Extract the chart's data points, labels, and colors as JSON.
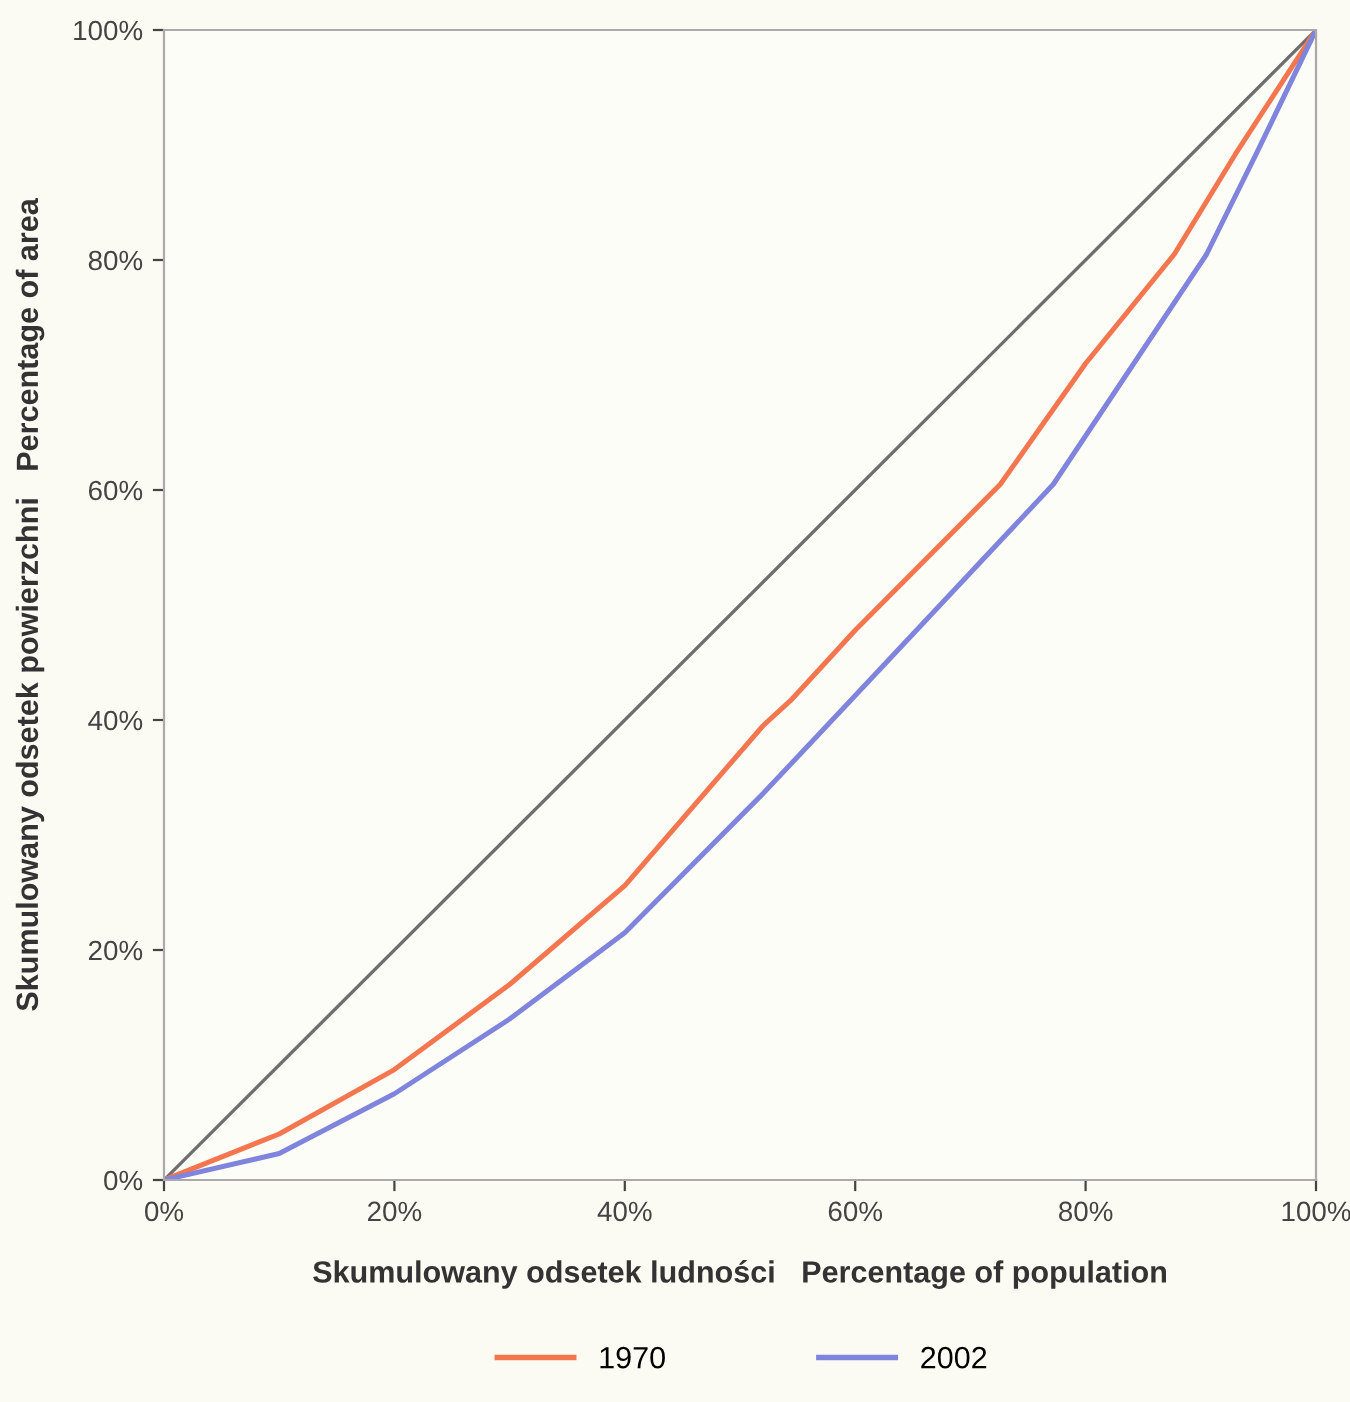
{
  "chart_data": {
    "type": "line",
    "xlabel": "Skumulowany odsetek ludności   Percentage of population",
    "ylabel": "Skumulowany odsetek powierzchni   Percentage of area",
    "series": [
      {
        "color": "#6e6e6e",
        "x": [
          0,
          100
        ],
        "values": [
          0,
          100
        ]
      },
      {
        "name": "1970",
        "color": "#f4764e",
        "x": [
          0,
          10,
          20,
          30,
          40,
          52,
          54.4,
          60,
          72.6,
          80,
          87.7,
          93,
          100
        ],
        "values": [
          0,
          4,
          9.6,
          17,
          25.6,
          39.5,
          41.7,
          47.8,
          60.5,
          71,
          80.5,
          89.2,
          100
        ]
      },
      {
        "name": "2002",
        "color": "#7f84dc",
        "x": [
          0,
          10,
          20,
          30,
          40,
          52,
          59.6,
          70,
          77.2,
          90.5,
          94.8,
          100
        ],
        "values": [
          0,
          2.3,
          7.5,
          14,
          21.5,
          33.6,
          41.7,
          52.8,
          60.5,
          80.5,
          89.2,
          100
        ]
      }
    ],
    "xlim": [
      0,
      100
    ],
    "ylim": [
      0,
      100
    ],
    "xticks": [
      {
        "value": 0,
        "label": "0%"
      },
      {
        "value": 20,
        "label": "20%"
      },
      {
        "value": 40,
        "label": "40%"
      },
      {
        "value": 60,
        "label": "60%"
      },
      {
        "value": 80,
        "label": "80%"
      },
      {
        "value": 100,
        "label": "100%"
      }
    ],
    "yticks": [
      {
        "value": 0,
        "label": "0%"
      },
      {
        "value": 20,
        "label": "20%"
      },
      {
        "value": 40,
        "label": "40%"
      },
      {
        "value": 60,
        "label": "60%"
      },
      {
        "value": 80,
        "label": "80%"
      },
      {
        "value": 100,
        "label": "100%"
      }
    ],
    "legend": "bottom",
    "grid": false,
    "marker": "none",
    "line_style": "solid"
  }
}
